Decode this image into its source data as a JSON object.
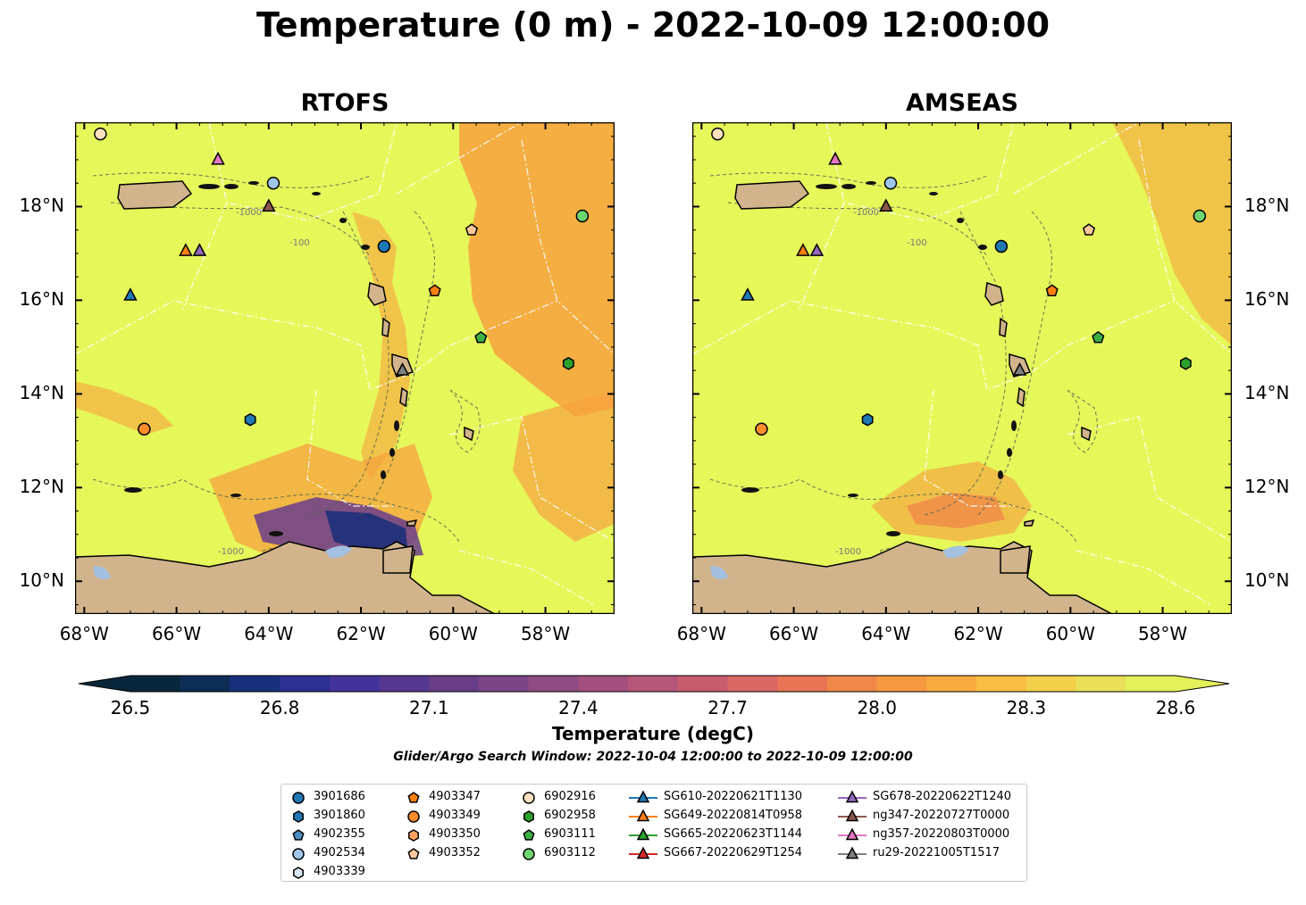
{
  "figure": {
    "title": "Temperature (0 m) - 2022-10-09 12:00:00",
    "search_window": "Glider/Argo Search Window: 2022-10-04 12:00:00 to 2022-10-09 12:00:00"
  },
  "panels": [
    {
      "title": "RTOFS"
    },
    {
      "title": "AMSEAS"
    }
  ],
  "axes": {
    "lon_ticks": [
      "68°W",
      "66°W",
      "64°W",
      "62°W",
      "60°W",
      "58°W"
    ],
    "lat_ticks": [
      "18°N",
      "16°N",
      "14°N",
      "12°N",
      "10°N"
    ],
    "lon_range": [
      -68.2,
      -56.5
    ],
    "lat_range": [
      9.3,
      19.8
    ]
  },
  "contours": {
    "depth_label": "-1000",
    "depth_label_2": "-100"
  },
  "colorbar": {
    "label": "Temperature (degC)",
    "ticks": [
      "26.5",
      "26.8",
      "27.1",
      "27.4",
      "27.7",
      "28.0",
      "28.3",
      "28.6"
    ],
    "range": [
      26.5,
      28.6
    ],
    "colors": [
      "#08263a",
      "#0d2d57",
      "#18307c",
      "#2d2f93",
      "#43329b",
      "#56378f",
      "#693e89",
      "#7c4586",
      "#8f4b82",
      "#a3507f",
      "#b5567a",
      "#c85d6f",
      "#d96863",
      "#e77555",
      "#f0884a",
      "#f69a42",
      "#f9ac3f",
      "#f9be42",
      "#f3d049",
      "#e8e157",
      "#e3f15a"
    ]
  },
  "colors": {
    "sea": "#e6f75a",
    "warm": "#f6a13e",
    "land": "#d2b48c",
    "lake": "#a3c0e0"
  },
  "legend": {
    "columns": [
      [
        {
          "label": "3901686",
          "marker": "circle",
          "color": "#1f77b4"
        },
        {
          "label": "3901860",
          "marker": "hexagon",
          "color": "#1f77b4"
        },
        {
          "label": "4902355",
          "marker": "pentagon",
          "color": "#4c8fc4"
        },
        {
          "label": "4902534",
          "marker": "circle",
          "color": "#9ec5ea"
        },
        {
          "label": "4903339",
          "marker": "hexagon",
          "color": "#d6e7f7"
        }
      ],
      [
        {
          "label": "4903347",
          "marker": "pentagon",
          "color": "#ff7f0e"
        },
        {
          "label": "4903349",
          "marker": "circle",
          "color": "#ff8c2a"
        },
        {
          "label": "4903350",
          "marker": "hexagon",
          "color": "#ffa35c"
        },
        {
          "label": "4903352",
          "marker": "pentagon",
          "color": "#ffc89a"
        }
      ],
      [
        {
          "label": "6902916",
          "marker": "circle",
          "color": "#ffe1bf"
        },
        {
          "label": "6902958",
          "marker": "hexagon",
          "color": "#2ca02c"
        },
        {
          "label": "6903111",
          "marker": "pentagon",
          "color": "#3cb043"
        },
        {
          "label": "6903112",
          "marker": "circle",
          "color": "#6fd66f"
        }
      ],
      [
        {
          "label": "SG610-20220621T1130",
          "marker": "triangle",
          "color": "#1f77b4"
        },
        {
          "label": "SG649-20220814T0958",
          "marker": "triangle",
          "color": "#ff7f0e"
        },
        {
          "label": "SG665-20220623T1144",
          "marker": "triangle",
          "color": "#2ca02c"
        },
        {
          "label": "SG667-20220629T1254",
          "marker": "triangle",
          "color": "#d62728"
        }
      ],
      [
        {
          "label": "SG678-20220622T1240",
          "marker": "triangle",
          "color": "#9467bd"
        },
        {
          "label": "ng347-20220727T0000",
          "marker": "triangle",
          "color": "#8c564b"
        },
        {
          "label": "ng357-20220803T0000",
          "marker": "triangle",
          "color": "#e377c2"
        },
        {
          "label": "ru29-20221005T1517",
          "marker": "triangle",
          "color": "#7f7f7f"
        }
      ]
    ]
  },
  "markers": [
    {
      "id": "3901686",
      "lon": -61.5,
      "lat": 17.15,
      "shape": "circle",
      "color": "#1f77b4"
    },
    {
      "id": "3901860",
      "lon": -64.4,
      "lat": 13.45,
      "shape": "hexagon",
      "color": "#1f77b4"
    },
    {
      "id": "4902534",
      "lon": -63.9,
      "lat": 18.5,
      "shape": "circle",
      "color": "#9ec5ea"
    },
    {
      "id": "4903347",
      "lon": -60.4,
      "lat": 16.2,
      "shape": "pentagon",
      "color": "#ff7f0e"
    },
    {
      "id": "4903349",
      "lon": -66.7,
      "lat": 13.25,
      "shape": "circle",
      "color": "#ff8c2a"
    },
    {
      "id": "4903352",
      "lon": -59.6,
      "lat": 17.5,
      "shape": "pentagon",
      "color": "#ffc89a"
    },
    {
      "id": "6902916",
      "lon": -67.65,
      "lat": 19.55,
      "shape": "circle",
      "color": "#ffe1bf"
    },
    {
      "id": "6902958",
      "lon": -57.5,
      "lat": 14.65,
      "shape": "hexagon",
      "color": "#2ca02c"
    },
    {
      "id": "6903111",
      "lon": -59.4,
      "lat": 15.2,
      "shape": "pentagon",
      "color": "#3cb043"
    },
    {
      "id": "6903112",
      "lon": -57.2,
      "lat": 17.8,
      "shape": "circle",
      "color": "#6fd66f"
    },
    {
      "id": "SG610-20220621T1130",
      "lon": -67.0,
      "lat": 16.1,
      "shape": "triangle",
      "color": "#1f77b4"
    },
    {
      "id": "SG649-20220814T0958",
      "lon": -65.8,
      "lat": 17.05,
      "shape": "triangle",
      "color": "#ff7f0e"
    },
    {
      "id": "SG678-20220622T1240",
      "lon": -65.5,
      "lat": 17.05,
      "shape": "triangle",
      "color": "#9467bd"
    },
    {
      "id": "ng347-20220727T0000",
      "lon": -64.0,
      "lat": 18.0,
      "shape": "triangle",
      "color": "#8c564b"
    },
    {
      "id": "ng357-20220803T0000",
      "lon": -65.1,
      "lat": 19.0,
      "shape": "triangle",
      "color": "#e377c2"
    },
    {
      "id": "ru29-20221005T1517",
      "lon": -61.1,
      "lat": 14.5,
      "shape": "triangle",
      "color": "#7f7f7f"
    }
  ]
}
